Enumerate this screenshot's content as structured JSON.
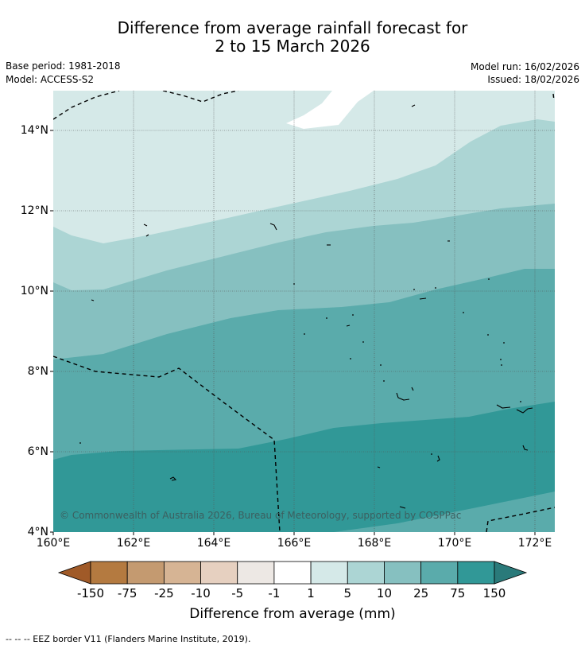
{
  "title": {
    "line1": "Difference from average rainfall forecast for",
    "line2": "2 to 15 March 2026"
  },
  "meta": {
    "base_period": "Base period: 1981-2018",
    "model": "Model: ACCESS-S2",
    "model_run": "Model run: 16/02/2026",
    "issued": "Issued: 18/02/2026"
  },
  "map": {
    "lat_labels": [
      "14°N",
      "12°N",
      "10°N",
      "8°N",
      "6°N",
      "4°N"
    ],
    "lon_labels": [
      "160°E",
      "162°E",
      "164°E",
      "166°E",
      "168°E",
      "170°E",
      "172°E"
    ],
    "copyright": "© Commonwealth of Australia 2026, Bureau of Meteorology, supported by COSPPac"
  },
  "colorbar": {
    "labels": [
      "-150",
      "-75",
      "-25",
      "-10",
      "-5",
      "-1",
      "1",
      "5",
      "10",
      "25",
      "75",
      "150"
    ],
    "colors": [
      "#a05a28",
      "#b47a40",
      "#c49a70",
      "#d6b494",
      "#e6d0c0",
      "#ede8e4",
      "#ffffff",
      "#d5e9e8",
      "#acd5d4",
      "#86c0c0",
      "#5aabab",
      "#319897",
      "#2a7a7a"
    ],
    "title": "Difference from average (mm)"
  },
  "footer": {
    "legend": "--  --  -- EEZ border V11 (Flanders Marine Institute, 2019)."
  }
}
